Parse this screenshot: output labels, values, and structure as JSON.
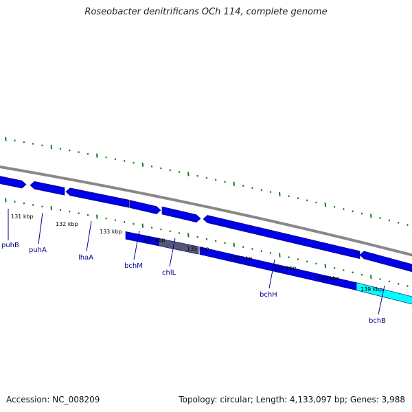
{
  "title": "Roseobacter denitrificans OCh 114, complete genome",
  "footer": {
    "accession": "Accession: NC_008209",
    "summary": "Topology: circular; Length: 4,133,097 bp; Genes: 3,988"
  },
  "colors": {
    "backbone": "#888888",
    "tick": "#1a7a1a",
    "gene_forward": "#0000e6",
    "gene_reverse": "#0000e6",
    "gene_highlight_dark": "#55557a",
    "gene_highlight_cyan": "#00ffff",
    "gene_label": "#00008b"
  },
  "scale_labels": [
    "131 kbp",
    "132 kbp",
    "133 kbp",
    "134 kbp",
    "135 kbp",
    "136 kbp",
    "137 kbp",
    "138 kbp",
    "139 kbp"
  ],
  "gene_labels": [
    "puhB",
    "puhA",
    "lhaA",
    "bchM",
    "chlL",
    "bchH",
    "bchB"
  ]
}
